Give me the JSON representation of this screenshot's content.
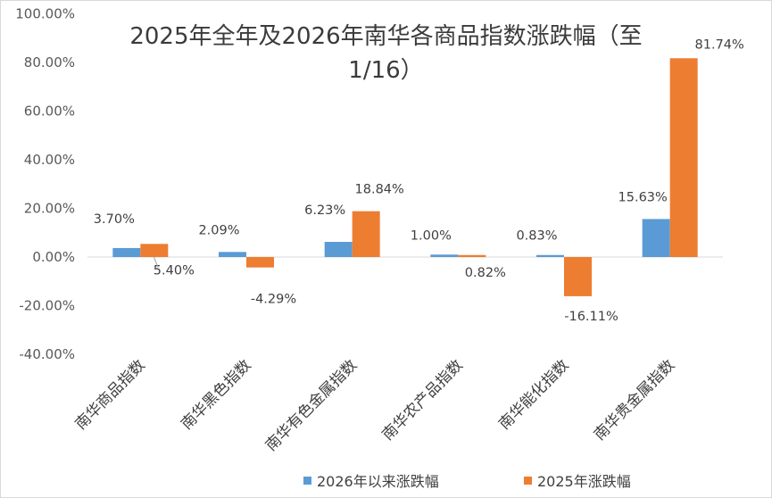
{
  "chart_data": {
    "type": "bar",
    "title_lines": [
      "2025年全年及2026年南华各商品指数涨跌幅（至",
      "1/16）"
    ],
    "categories": [
      "南华商品指数",
      "南华黑色指数",
      "南华有色金属指数",
      "南华农产品指数",
      "南华能化指数",
      "南华贵金属指数"
    ],
    "series": [
      {
        "name": "2026年以来涨跌幅",
        "color": "#5b9bd5",
        "values": [
          3.7,
          2.09,
          6.23,
          1.0,
          0.83,
          15.63
        ],
        "labels": [
          "3.70%",
          "2.09%",
          "6.23%",
          "1.00%",
          "0.83%",
          "15.63%"
        ]
      },
      {
        "name": "2025年涨跌幅",
        "color": "#ed7d31",
        "values": [
          5.4,
          -4.29,
          18.84,
          0.82,
          -16.11,
          81.74
        ],
        "labels": [
          "5.40%",
          "-4.29%",
          "18.84%",
          "0.82%",
          "-16.11%",
          "81.74%"
        ]
      }
    ],
    "yticks": [
      "100.00%",
      "80.00%",
      "60.00%",
      "40.00%",
      "20.00%",
      "0.00%",
      "-20.00%",
      "-40.00%"
    ],
    "ylim": [
      -40,
      100
    ],
    "xlabel": "",
    "ylabel": "",
    "legend_position": "bottom"
  }
}
